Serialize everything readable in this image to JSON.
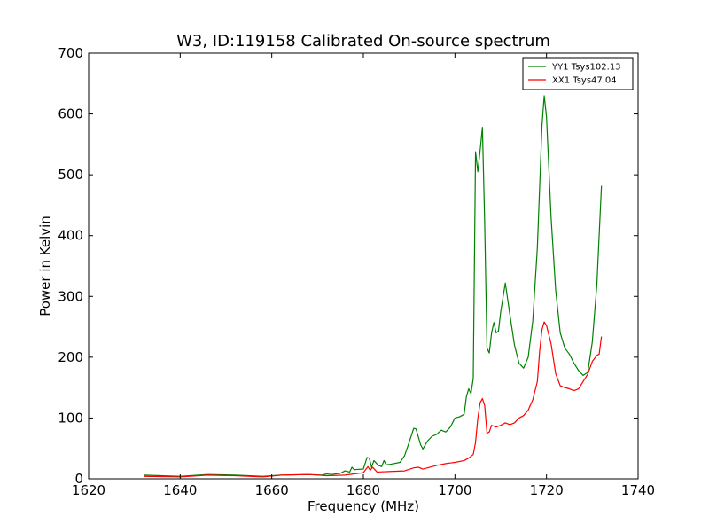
{
  "chart_data": {
    "type": "line",
    "title": "W3, ID:119158 Calibrated On-source spectrum",
    "xlabel": "Frequency (MHz)",
    "ylabel": "Power in Kelvin",
    "xlim": [
      1620,
      1740
    ],
    "ylim": [
      0,
      700
    ],
    "xticks": [
      1620,
      1640,
      1660,
      1680,
      1700,
      1720,
      1740
    ],
    "yticks": [
      0,
      100,
      200,
      300,
      400,
      500,
      600,
      700
    ],
    "grid": false,
    "legend_position": "top-right",
    "series": [
      {
        "name": "YY1 Tsys102.13",
        "color": "#008000",
        "points": [
          [
            1632,
            6
          ],
          [
            1640,
            4
          ],
          [
            1646,
            7
          ],
          [
            1652,
            6
          ],
          [
            1658,
            4
          ],
          [
            1662,
            6
          ],
          [
            1668,
            7
          ],
          [
            1671,
            6
          ],
          [
            1672,
            8
          ],
          [
            1673,
            7
          ],
          [
            1675,
            9
          ],
          [
            1676,
            13
          ],
          [
            1677,
            11
          ],
          [
            1677.5,
            19
          ],
          [
            1678,
            15
          ],
          [
            1680,
            16
          ],
          [
            1680.8,
            35
          ],
          [
            1681.3,
            34
          ],
          [
            1681.8,
            19
          ],
          [
            1682.3,
            30
          ],
          [
            1683.3,
            22
          ],
          [
            1684,
            20
          ],
          [
            1684.5,
            30
          ],
          [
            1685,
            23
          ],
          [
            1686,
            24
          ],
          [
            1688,
            27
          ],
          [
            1689,
            38
          ],
          [
            1690,
            60
          ],
          [
            1691,
            83
          ],
          [
            1691.5,
            82
          ],
          [
            1692.5,
            56
          ],
          [
            1693,
            49
          ],
          [
            1694,
            62
          ],
          [
            1695,
            70
          ],
          [
            1696,
            73
          ],
          [
            1697,
            80
          ],
          [
            1698,
            77
          ],
          [
            1699,
            85
          ],
          [
            1700,
            100
          ],
          [
            1701,
            102
          ],
          [
            1702,
            106
          ],
          [
            1702.5,
            135
          ],
          [
            1703,
            148
          ],
          [
            1703.5,
            140
          ],
          [
            1704,
            165
          ],
          [
            1704.5,
            538
          ],
          [
            1705,
            505
          ],
          [
            1705.5,
            540
          ],
          [
            1706,
            578
          ],
          [
            1706.5,
            420
          ],
          [
            1707,
            215
          ],
          [
            1707.5,
            207
          ],
          [
            1708,
            240
          ],
          [
            1708.5,
            257
          ],
          [
            1709,
            240
          ],
          [
            1709.5,
            243
          ],
          [
            1710,
            275
          ],
          [
            1711,
            322
          ],
          [
            1712,
            270
          ],
          [
            1713,
            220
          ],
          [
            1714,
            190
          ],
          [
            1715,
            182
          ],
          [
            1716,
            200
          ],
          [
            1717,
            260
          ],
          [
            1718,
            380
          ],
          [
            1719,
            580
          ],
          [
            1719.5,
            630
          ],
          [
            1720,
            595
          ],
          [
            1721,
            430
          ],
          [
            1722,
            310
          ],
          [
            1723,
            240
          ],
          [
            1724,
            215
          ],
          [
            1725,
            205
          ],
          [
            1726,
            190
          ],
          [
            1727,
            178
          ],
          [
            1728,
            170
          ],
          [
            1729,
            175
          ],
          [
            1730,
            225
          ],
          [
            1731,
            320
          ],
          [
            1732,
            482
          ]
        ]
      },
      {
        "name": "XX1 Tsys47.04",
        "color": "#ff0000",
        "points": [
          [
            1632,
            4
          ],
          [
            1640,
            3
          ],
          [
            1646,
            6
          ],
          [
            1652,
            5
          ],
          [
            1658,
            3
          ],
          [
            1662,
            6
          ],
          [
            1668,
            7
          ],
          [
            1672,
            5
          ],
          [
            1676,
            6
          ],
          [
            1680,
            10
          ],
          [
            1681,
            20
          ],
          [
            1681.5,
            14
          ],
          [
            1682,
            19
          ],
          [
            1683,
            11
          ],
          [
            1686,
            12
          ],
          [
            1689,
            13
          ],
          [
            1691,
            18
          ],
          [
            1692,
            19
          ],
          [
            1693,
            16
          ],
          [
            1694,
            18
          ],
          [
            1696,
            22
          ],
          [
            1698,
            25
          ],
          [
            1700,
            27
          ],
          [
            1702,
            30
          ],
          [
            1703,
            34
          ],
          [
            1704,
            40
          ],
          [
            1704.5,
            60
          ],
          [
            1705,
            100
          ],
          [
            1705.5,
            125
          ],
          [
            1706,
            132
          ],
          [
            1706.5,
            120
          ],
          [
            1707,
            75
          ],
          [
            1707.5,
            77
          ],
          [
            1708,
            88
          ],
          [
            1709,
            85
          ],
          [
            1710,
            88
          ],
          [
            1711,
            92
          ],
          [
            1712,
            89
          ],
          [
            1713,
            92
          ],
          [
            1714,
            100
          ],
          [
            1715,
            104
          ],
          [
            1716,
            113
          ],
          [
            1717,
            130
          ],
          [
            1718,
            160
          ],
          [
            1718.5,
            210
          ],
          [
            1719,
            245
          ],
          [
            1719.5,
            258
          ],
          [
            1720,
            252
          ],
          [
            1721,
            222
          ],
          [
            1722,
            173
          ],
          [
            1723,
            153
          ],
          [
            1724,
            150
          ],
          [
            1725,
            148
          ],
          [
            1726,
            145
          ],
          [
            1727,
            148
          ],
          [
            1728,
            160
          ],
          [
            1729,
            172
          ],
          [
            1730,
            193
          ],
          [
            1731,
            203
          ],
          [
            1731.5,
            205
          ],
          [
            1732,
            234
          ]
        ]
      }
    ]
  }
}
